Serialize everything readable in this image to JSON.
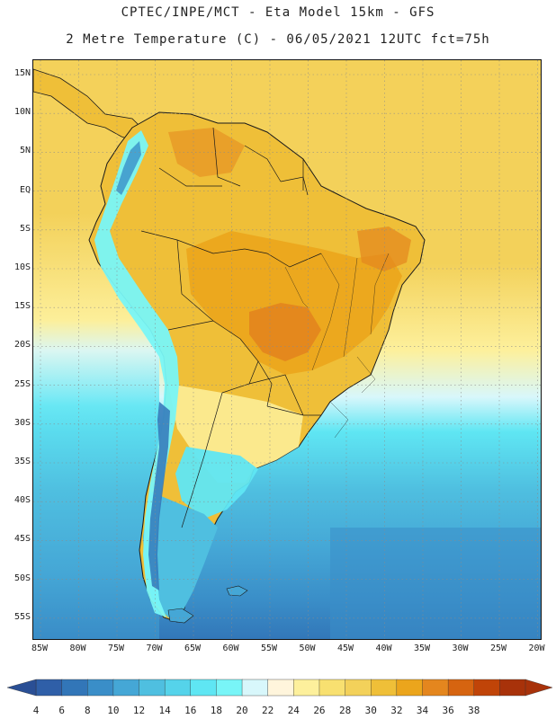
{
  "header": {
    "line1": "CPTEC/INPE/MCT -  Eta Model 15km - GFS",
    "line2": "2 Metre Temperature (C) - 06/05/2021 12UTC fct=75h"
  },
  "map": {
    "lat_labels": [
      "15N",
      "10N",
      "5N",
      "EQ",
      "5S",
      "10S",
      "15S",
      "20S",
      "25S",
      "30S",
      "35S",
      "40S",
      "45S",
      "50S",
      "55S"
    ],
    "lon_labels": [
      "85W",
      "80W",
      "75W",
      "70W",
      "65W",
      "60W",
      "55W",
      "50W",
      "45W",
      "40W",
      "35W",
      "30W",
      "25W",
      "20W"
    ]
  },
  "colorbar": {
    "labels": [
      "4",
      "6",
      "8",
      "10",
      "12",
      "14",
      "16",
      "18",
      "20",
      "22",
      "24",
      "26",
      "28",
      "30",
      "32",
      "34",
      "36",
      "38"
    ],
    "colors": [
      "#2f5fa8",
      "#3276b8",
      "#3a8ec8",
      "#45a7d6",
      "#4fbfe0",
      "#55d3ea",
      "#5fe6f3",
      "#78f5f7",
      "#d8f7fb",
      "#fff5dc",
      "#fdf09c",
      "#f8e070",
      "#f3d15a",
      "#efbf38",
      "#eba51c",
      "#e4861e",
      "#d66410",
      "#c04408",
      "#a8320a"
    ],
    "left_arrow_color": "#2a4f95",
    "right_arrow_color": "#a8320a"
  },
  "palette": {
    "ocean_warm": "#f3d15a",
    "ocean_mid": "#fdf09c",
    "ocean_cool": "#5fe6f3",
    "ocean_cold": "#45a7d6",
    "ocean_colder": "#3a8ec8",
    "land_hot": "#eba51c",
    "land_hotter": "#e4861e",
    "land_warm": "#efbf38",
    "andes": "#78f5f7",
    "andes_high": "#3276b8",
    "patagonia": "#4fbfe0",
    "border": "#1a1a1a"
  }
}
